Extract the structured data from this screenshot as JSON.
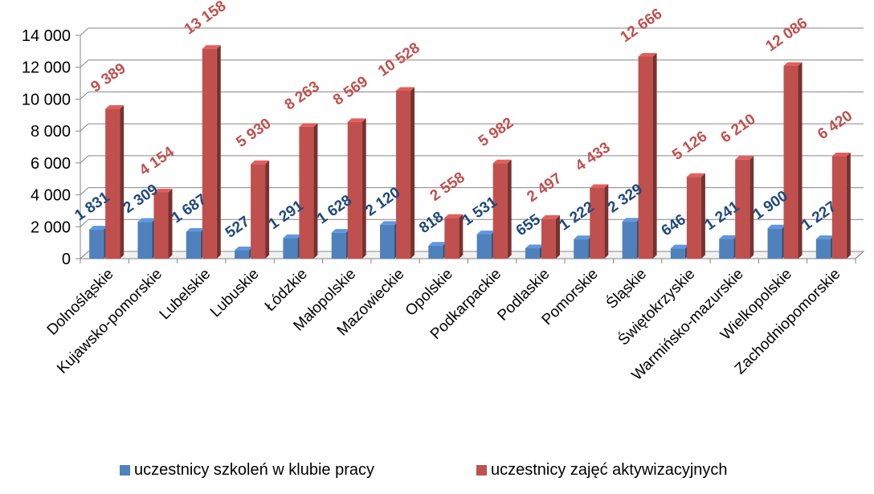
{
  "chart_data": {
    "type": "bar",
    "categories": [
      "Dolnośląskie",
      "Kujawsko-pomorskie",
      "Lubelskie",
      "Lubuskie",
      "Łódzkie",
      "Małopolskie",
      "Mazowieckie",
      "Opolskie",
      "Podkarpackie",
      "Podlaskie",
      "Pomorskie",
      "Śląskie",
      "Świętokrzyskie",
      "Warmińsko-mazurskie",
      "Wielkopolskie",
      "Zachodniopomorskie"
    ],
    "series": [
      {
        "name": "uczestnicy szkoleń w klubie pracy",
        "color": "#4F81BD",
        "label_color": "#1F497D",
        "values": [
          1831,
          2309,
          1687,
          527,
          1291,
          1628,
          2120,
          818,
          1531,
          655,
          1222,
          2329,
          646,
          1241,
          1900,
          1227
        ],
        "labels": [
          "1 831",
          "2 309",
          "1 687",
          "527",
          "1 291",
          "1 628",
          "2 120",
          "818",
          "1 531",
          "655",
          "1 222",
          "2 329",
          "646",
          "1 241",
          "1 900",
          "1 227"
        ]
      },
      {
        "name": "uczestnicy zajęć aktywizacyjnych",
        "color": "#C0504D",
        "label_color": "#C0504D",
        "values": [
          9389,
          4154,
          13158,
          5930,
          8263,
          8569,
          10528,
          2558,
          5982,
          2497,
          4433,
          12666,
          5126,
          6210,
          12086,
          6420
        ],
        "labels": [
          "9 389",
          "4 154",
          "13 158",
          "5 930",
          "8 263",
          "8 569",
          "10 528",
          "2 558",
          "5 982",
          "2 497",
          "4 433",
          "12 666",
          "5 126",
          "6 210",
          "12 086",
          "6 420"
        ]
      }
    ],
    "y_ticks": [
      "0",
      "2 000",
      "4 000",
      "6 000",
      "8 000",
      "10 000",
      "12 000",
      "14 000"
    ],
    "ylim": [
      0,
      14000
    ],
    "grid": true,
    "legend_position": "bottom"
  }
}
